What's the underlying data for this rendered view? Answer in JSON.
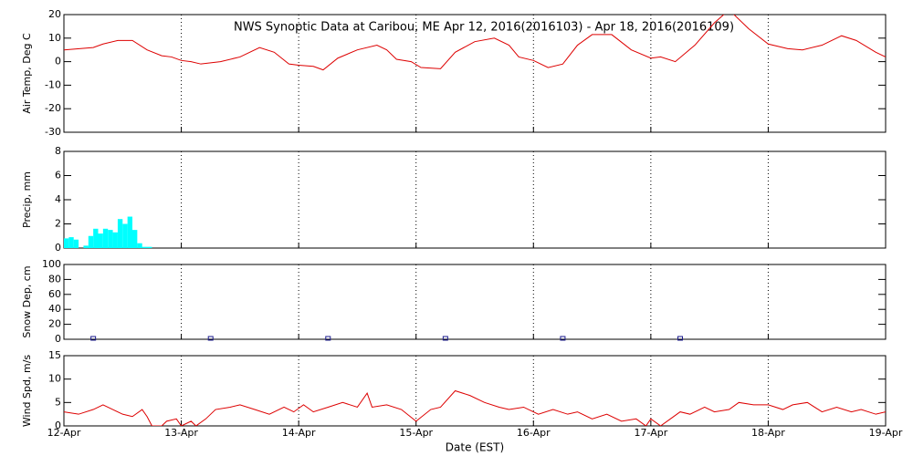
{
  "chart_data": [
    {
      "type": "line",
      "title": "NWS Synoptic Data at Caribou, ME   Apr 12, 2016(2016103) - Apr 18, 2016(2016109)",
      "ylabel": "Air Temp, Deg C",
      "color": "#dd0000",
      "x": [
        0,
        6,
        8,
        11,
        14,
        17,
        20,
        22,
        24,
        26,
        28,
        32,
        36,
        40,
        43,
        46,
        48,
        51,
        53,
        56,
        60,
        64,
        66,
        68,
        71,
        73,
        77,
        80,
        84,
        88,
        91,
        93,
        96,
        99,
        102,
        105,
        108,
        112,
        116,
        120,
        122,
        125,
        129,
        133,
        136,
        140,
        144,
        148,
        151,
        155,
        159,
        162,
        166,
        168
      ],
      "values": [
        5,
        6,
        7.5,
        9,
        9,
        5,
        2.5,
        2,
        0.5,
        0,
        -1,
        0,
        2,
        6,
        4,
        -1,
        -1.5,
        -2,
        -3.5,
        1.5,
        5,
        7,
        5,
        1,
        0,
        -2.5,
        -3,
        4,
        8.5,
        10,
        7,
        2,
        0.5,
        -2.5,
        -1,
        7,
        11.5,
        11.5,
        5,
        1.5,
        2,
        0,
        7,
        16.5,
        22,
        14,
        7.5,
        5.5,
        5,
        7,
        11,
        9,
        4,
        2
      ],
      "xlim": [
        0,
        168
      ],
      "xticks": [
        0,
        24,
        48,
        72,
        96,
        120,
        144,
        168
      ],
      "ylim": [
        -30,
        20
      ],
      "yticks": [
        -30,
        -20,
        -10,
        0,
        10,
        20
      ],
      "grid": true
    },
    {
      "type": "bar",
      "ylabel": "Precip, mm",
      "color": "#00ffff",
      "x": [
        0,
        1,
        2,
        3,
        4,
        5,
        6,
        7,
        8,
        9,
        10,
        11,
        12,
        13,
        14,
        15,
        16,
        17
      ],
      "values": [
        0.8,
        0.9,
        0.7,
        0,
        0.2,
        1.0,
        1.6,
        1.2,
        1.6,
        1.5,
        1.3,
        2.4,
        2.0,
        2.6,
        1.5,
        0.4,
        0.1,
        0.1
      ],
      "xlim": [
        0,
        168
      ],
      "xticks": [
        0,
        24,
        48,
        72,
        96,
        120,
        144,
        168
      ],
      "ylim": [
        0,
        8
      ],
      "yticks": [
        0,
        2,
        4,
        6,
        8
      ],
      "grid": true
    },
    {
      "type": "scatter",
      "ylabel": "Snow Dep, cm",
      "color": "#1a1a8c",
      "x": [
        6,
        30,
        54,
        78,
        102,
        126
      ],
      "values": [
        0,
        0,
        0,
        0,
        0,
        0
      ],
      "xlim": [
        0,
        168
      ],
      "xticks": [
        0,
        24,
        48,
        72,
        96,
        120,
        144,
        168
      ],
      "ylim": [
        0,
        100
      ],
      "yticks": [
        0,
        20,
        40,
        60,
        80,
        100
      ],
      "grid": true
    },
    {
      "type": "line",
      "ylabel": "Wind Spd, m/s",
      "xlabel": "Date (EST)",
      "color": "#dd0000",
      "x": [
        0,
        3,
        6,
        8,
        10,
        12,
        14,
        16,
        17,
        18,
        20,
        21,
        23,
        24,
        26,
        27,
        29,
        31,
        34,
        36,
        39,
        42,
        45,
        47,
        49,
        51,
        54,
        57,
        60,
        62,
        63,
        66,
        69,
        72,
        75,
        77,
        80,
        83,
        86,
        89,
        91,
        94,
        97,
        100,
        103,
        105,
        108,
        111,
        114,
        117,
        119,
        120,
        122,
        124,
        126,
        128,
        131,
        133,
        136,
        138,
        141,
        144,
        147,
        149,
        152,
        155,
        158,
        161,
        163,
        166,
        168
      ],
      "values": [
        3,
        2.5,
        3.5,
        4.5,
        3.5,
        2.5,
        2,
        3.5,
        2,
        0,
        0,
        1,
        1.5,
        0,
        1,
        0,
        1.5,
        3.5,
        4,
        4.5,
        3.5,
        2.5,
        4,
        3,
        4.5,
        3,
        4,
        5,
        4,
        7,
        4,
        4.5,
        3.5,
        1,
        3.5,
        4,
        7.5,
        6.5,
        5,
        4,
        3.5,
        4,
        2.5,
        3.5,
        2.5,
        3,
        1.5,
        2.5,
        1,
        1.5,
        0,
        1.5,
        0,
        1.5,
        3,
        2.5,
        4,
        3,
        3.5,
        5,
        4.5,
        4.5,
        3.5,
        4.5,
        5,
        3,
        4,
        3,
        3.5,
        2.5,
        3
      ],
      "xlim": [
        0,
        168
      ],
      "xticks": [
        {
          "value": 0,
          "label": "12-Apr"
        },
        {
          "value": 24,
          "label": "13-Apr"
        },
        {
          "value": 48,
          "label": "14-Apr"
        },
        {
          "value": 72,
          "label": "15-Apr"
        },
        {
          "value": 96,
          "label": "16-Apr"
        },
        {
          "value": 120,
          "label": "17-Apr"
        },
        {
          "value": 144,
          "label": "18-Apr"
        },
        {
          "value": 168,
          "label": "19-Apr"
        }
      ],
      "ylim": [
        0,
        15
      ],
      "yticks": [
        0,
        5,
        10,
        15
      ],
      "grid": true
    }
  ]
}
